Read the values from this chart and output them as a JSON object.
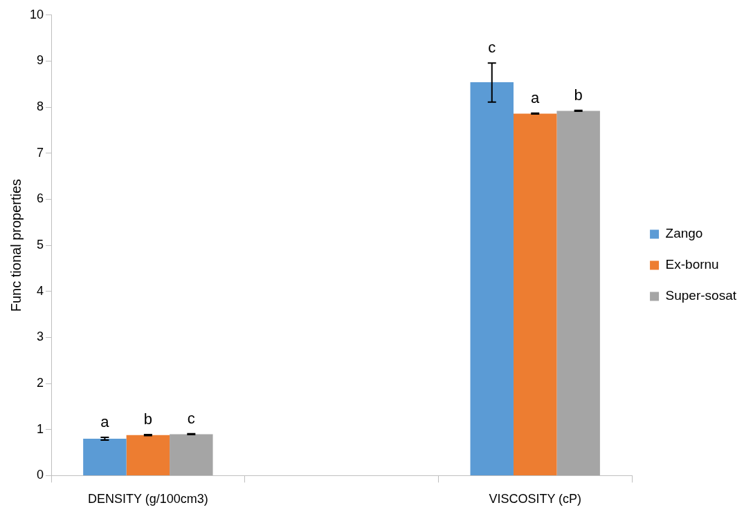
{
  "chart_data": {
    "type": "bar",
    "ylabel": "Func tional properties",
    "categories": [
      "DENSITY (g/100cm3)",
      null,
      "VISCOSITY (cP)"
    ],
    "series": [
      {
        "name": "Zango",
        "color": "#5b9bd5",
        "values": [
          0.8,
          null,
          8.54
        ],
        "errors": [
          0.03,
          null,
          [
            8.11,
            8.96
          ]
        ],
        "value_labels": [
          "a",
          null,
          "c"
        ]
      },
      {
        "name": "Ex-bornu",
        "color": "#ed7d31",
        "values": [
          0.88,
          null,
          7.86
        ],
        "errors": [
          0.01,
          null,
          0.01
        ],
        "value_labels": [
          "b",
          null,
          "a"
        ]
      },
      {
        "name": "Super-sosat",
        "color": "#a5a5a5",
        "values": [
          0.9,
          null,
          7.92
        ],
        "errors": [
          0.01,
          null,
          0.01
        ],
        "value_labels": [
          "c",
          null,
          "b"
        ]
      }
    ],
    "ylim": [
      0,
      10
    ],
    "yticks": [
      0,
      1,
      2,
      3,
      4,
      5,
      6,
      7,
      8,
      9,
      10
    ],
    "grid": false,
    "legend": "right"
  }
}
